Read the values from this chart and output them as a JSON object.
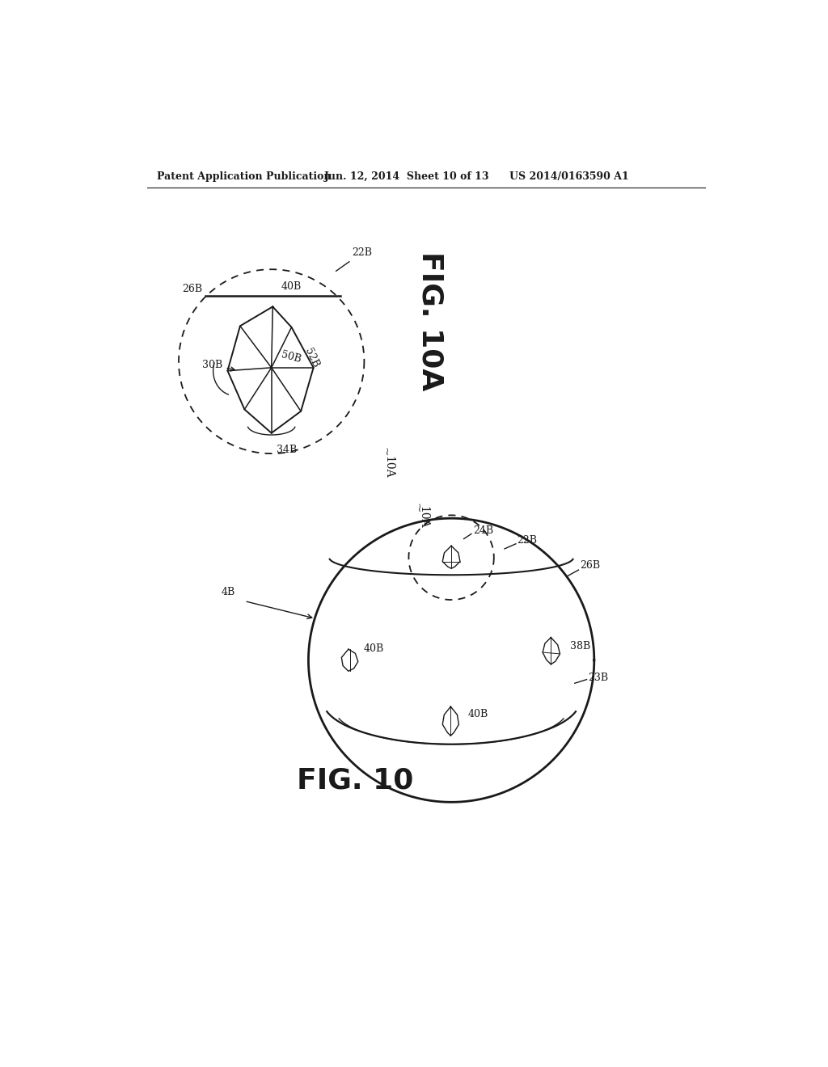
{
  "bg_color": "#ffffff",
  "header_left": "Patent Application Publication",
  "header_mid": "Jun. 12, 2014  Sheet 10 of 13",
  "header_right": "US 2014/0163590 A1",
  "lc": "#1a1a1a",
  "fs_label": 9.0,
  "fs_fig": 26,
  "fs_header": 9,
  "fig10A_label": "FIG. 10A",
  "fig10_label": "FIG. 10"
}
